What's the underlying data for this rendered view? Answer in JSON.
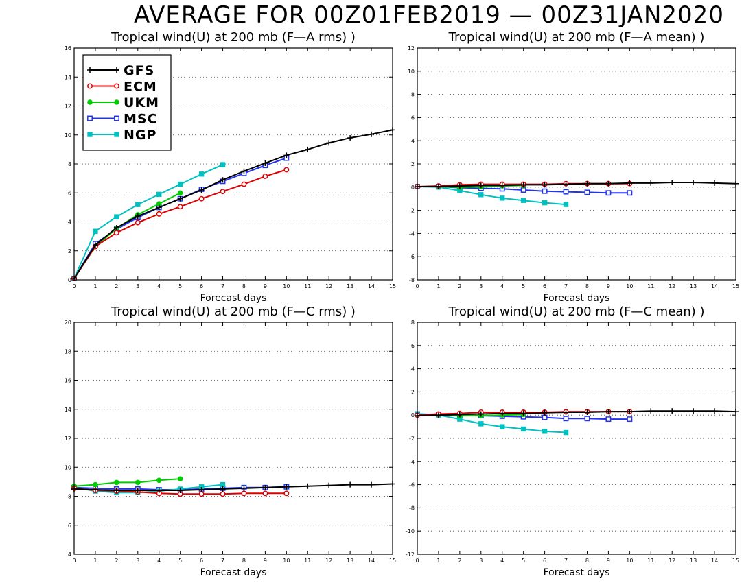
{
  "header": {
    "title": "AVERAGE FOR 00Z01FEB2019 — 00Z31JAN2020"
  },
  "legend": {
    "items": [
      {
        "name": "GFS",
        "color": "#000000",
        "marker": "plus"
      },
      {
        "name": "ECM",
        "color": "#dd0000",
        "marker": "open-circle"
      },
      {
        "name": "UKM",
        "color": "#00cc00",
        "marker": "filled-circle"
      },
      {
        "name": "MSC",
        "color": "#2233ee",
        "marker": "open-square"
      },
      {
        "name": "NGP",
        "color": "#00c0c0",
        "marker": "filled-square"
      }
    ]
  },
  "chart_data": [
    {
      "type": "line",
      "title": "Tropical wind(U) at 200 mb (F—A rms) )",
      "xlabel": "Forecast days",
      "ylabel": "",
      "xlim": [
        0,
        15
      ],
      "ylim": [
        0,
        16
      ],
      "yticks": [
        0,
        2,
        4,
        6,
        8,
        10,
        12,
        14,
        16
      ],
      "xticks": [
        0,
        1,
        2,
        3,
        4,
        5,
        6,
        7,
        8,
        9,
        10,
        11,
        12,
        13,
        14,
        15
      ],
      "grid": "horizontal-dotted",
      "legend_position": "top-left",
      "series": [
        {
          "name": "GFS",
          "x": [
            0,
            1,
            2,
            3,
            4,
            5,
            6,
            7,
            8,
            9,
            10,
            11,
            12,
            13,
            14,
            15
          ],
          "values": [
            0.1,
            2.4,
            3.6,
            4.4,
            5.0,
            5.6,
            6.2,
            6.9,
            7.5,
            8.05,
            8.6,
            9.0,
            9.45,
            9.8,
            10.05,
            10.35
          ]
        },
        {
          "name": "ECM",
          "x": [
            0,
            1,
            2,
            3,
            4,
            5,
            6,
            7,
            8,
            9,
            10
          ],
          "values": [
            0.1,
            2.3,
            3.25,
            3.95,
            4.55,
            5.05,
            5.6,
            6.1,
            6.6,
            7.15,
            7.6
          ]
        },
        {
          "name": "UKM",
          "x": [
            0,
            1,
            2,
            3,
            4,
            5
          ],
          "values": [
            0.1,
            2.3,
            3.55,
            4.5,
            5.25,
            6.0
          ]
        },
        {
          "name": "MSC",
          "x": [
            0,
            1,
            2,
            3,
            4,
            5,
            6,
            7,
            8,
            9,
            10
          ],
          "values": [
            0.1,
            2.5,
            3.5,
            4.3,
            5.0,
            5.6,
            6.25,
            6.8,
            7.35,
            7.9,
            8.4
          ]
        },
        {
          "name": "NGP",
          "x": [
            0,
            1,
            2,
            3,
            4,
            5,
            6,
            7
          ],
          "values": [
            0.1,
            3.35,
            4.35,
            5.2,
            5.9,
            6.6,
            7.3,
            7.95
          ]
        }
      ]
    },
    {
      "type": "line",
      "title": "Tropical wind(U) at 200 mb (F—A mean) )",
      "xlabel": "Forecast days",
      "ylabel": "",
      "xlim": [
        0,
        15
      ],
      "ylim": [
        -8,
        12
      ],
      "yticks": [
        -8,
        -6,
        -4,
        -2,
        0,
        2,
        4,
        6,
        8,
        10,
        12
      ],
      "xticks": [
        0,
        1,
        2,
        3,
        4,
        5,
        6,
        7,
        8,
        9,
        10,
        11,
        12,
        13,
        14,
        15
      ],
      "grid": "horizontal-dotted",
      "series": [
        {
          "name": "GFS",
          "x": [
            0,
            1,
            2,
            3,
            4,
            5,
            6,
            7,
            8,
            9,
            10,
            11,
            12,
            13,
            14,
            15
          ],
          "values": [
            0.05,
            0.05,
            0.1,
            0.15,
            0.15,
            0.2,
            0.2,
            0.25,
            0.3,
            0.3,
            0.35,
            0.35,
            0.4,
            0.4,
            0.35,
            0.3
          ]
        },
        {
          "name": "ECM",
          "x": [
            0,
            1,
            2,
            3,
            4,
            5,
            6,
            7,
            8,
            9,
            10
          ],
          "values": [
            0.05,
            0.1,
            0.2,
            0.25,
            0.25,
            0.25,
            0.25,
            0.3,
            0.3,
            0.3,
            0.3
          ]
        },
        {
          "name": "UKM",
          "x": [
            0,
            1,
            2,
            3,
            4,
            5
          ],
          "values": [
            0.05,
            0.05,
            0.0,
            0.05,
            0.1,
            0.15
          ]
        },
        {
          "name": "MSC",
          "x": [
            0,
            1,
            2,
            3,
            4,
            5,
            6,
            7,
            8,
            9,
            10
          ],
          "values": [
            0.05,
            0.05,
            -0.05,
            -0.1,
            -0.15,
            -0.25,
            -0.35,
            -0.4,
            -0.45,
            -0.5,
            -0.5
          ]
        },
        {
          "name": "NGP",
          "x": [
            0,
            1,
            2,
            3,
            4,
            5,
            6,
            7
          ],
          "values": [
            0.05,
            0.0,
            -0.3,
            -0.65,
            -0.95,
            -1.15,
            -1.35,
            -1.5
          ]
        }
      ]
    },
    {
      "type": "line",
      "title": "Tropical wind(U) at 200 mb (F—C rms) )",
      "xlabel": "Forecast days",
      "ylabel": "",
      "xlim": [
        0,
        15
      ],
      "ylim": [
        4,
        20
      ],
      "yticks": [
        4,
        6,
        8,
        10,
        12,
        14,
        16,
        18,
        20
      ],
      "xticks": [
        0,
        1,
        2,
        3,
        4,
        5,
        6,
        7,
        8,
        9,
        10,
        11,
        12,
        13,
        14,
        15
      ],
      "grid": "horizontal-dotted",
      "series": [
        {
          "name": "GFS",
          "x": [
            0,
            1,
            2,
            3,
            4,
            5,
            6,
            7,
            8,
            9,
            10,
            11,
            12,
            13,
            14,
            15
          ],
          "values": [
            8.5,
            8.45,
            8.4,
            8.4,
            8.4,
            8.4,
            8.45,
            8.5,
            8.55,
            8.6,
            8.65,
            8.7,
            8.75,
            8.8,
            8.8,
            8.85
          ]
        },
        {
          "name": "ECM",
          "x": [
            0,
            1,
            2,
            3,
            4,
            5,
            6,
            7,
            8,
            9,
            10
          ],
          "values": [
            8.55,
            8.4,
            8.35,
            8.3,
            8.2,
            8.15,
            8.15,
            8.15,
            8.2,
            8.2,
            8.2
          ]
        },
        {
          "name": "UKM",
          "x": [
            0,
            1,
            2,
            3,
            4,
            5
          ],
          "values": [
            8.7,
            8.8,
            8.95,
            8.95,
            9.1,
            9.2
          ]
        },
        {
          "name": "MSC",
          "x": [
            0,
            1,
            2,
            3,
            4,
            5,
            6,
            7,
            8,
            9,
            10
          ],
          "values": [
            8.6,
            8.55,
            8.5,
            8.5,
            8.45,
            8.45,
            8.5,
            8.55,
            8.6,
            8.6,
            8.65
          ]
        },
        {
          "name": "NGP",
          "x": [
            0,
            1,
            2,
            3,
            4,
            5,
            6,
            7
          ],
          "values": [
            8.6,
            8.35,
            8.25,
            8.25,
            8.35,
            8.5,
            8.65,
            8.8
          ]
        }
      ]
    },
    {
      "type": "line",
      "title": "Tropical wind(U) at 200 mb (F—C mean) )",
      "xlabel": "Forecast days",
      "ylabel": "",
      "xlim": [
        0,
        15
      ],
      "ylim": [
        -12,
        8
      ],
      "yticks": [
        -12,
        -10,
        -8,
        -6,
        -4,
        -2,
        0,
        2,
        4,
        6,
        8
      ],
      "xticks": [
        0,
        1,
        2,
        3,
        4,
        5,
        6,
        7,
        8,
        9,
        10,
        11,
        12,
        13,
        14,
        15
      ],
      "grid": "horizontal-dotted",
      "series": [
        {
          "name": "GFS",
          "x": [
            0,
            1,
            2,
            3,
            4,
            5,
            6,
            7,
            8,
            9,
            10,
            11,
            12,
            13,
            14,
            15
          ],
          "values": [
            -0.05,
            0.0,
            0.05,
            0.1,
            0.15,
            0.15,
            0.2,
            0.25,
            0.25,
            0.3,
            0.3,
            0.35,
            0.35,
            0.35,
            0.35,
            0.3
          ]
        },
        {
          "name": "ECM",
          "x": [
            0,
            1,
            2,
            3,
            4,
            5,
            6,
            7,
            8,
            9,
            10
          ],
          "values": [
            0.0,
            0.1,
            0.15,
            0.25,
            0.25,
            0.25,
            0.25,
            0.3,
            0.3,
            0.3,
            0.3
          ]
        },
        {
          "name": "UKM",
          "x": [
            0,
            1,
            2,
            3,
            4,
            5
          ],
          "values": [
            0.0,
            0.05,
            -0.05,
            -0.05,
            0.0,
            0.05
          ]
        },
        {
          "name": "MSC",
          "x": [
            0,
            1,
            2,
            3,
            4,
            5,
            6,
            7,
            8,
            9,
            10
          ],
          "values": [
            0.1,
            0.05,
            -0.05,
            -0.05,
            -0.1,
            -0.15,
            -0.2,
            -0.3,
            -0.3,
            -0.35,
            -0.35
          ]
        },
        {
          "name": "NGP",
          "x": [
            0,
            1,
            2,
            3,
            4,
            5,
            6,
            7
          ],
          "values": [
            0.1,
            0.0,
            -0.35,
            -0.75,
            -1.0,
            -1.2,
            -1.4,
            -1.5
          ]
        }
      ]
    }
  ]
}
